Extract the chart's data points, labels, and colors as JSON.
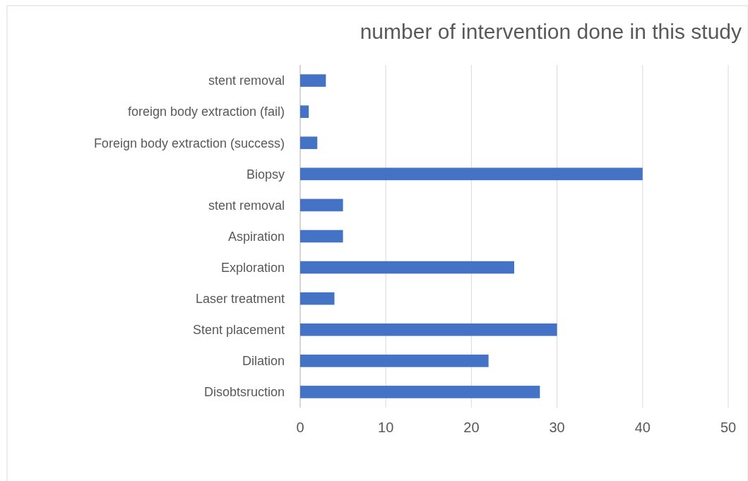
{
  "chart_data": {
    "type": "bar",
    "orientation": "horizontal",
    "title": "number of intervention done in this study",
    "categories": [
      "stent removal",
      "foreign body extraction (fail)",
      "Foreign body extraction (success)",
      "Biopsy",
      "stent removal",
      "Aspiration",
      "Exploration",
      "Laser treatment",
      "Stent placement",
      "Dilation",
      "Disobtsruction"
    ],
    "values": [
      3,
      1,
      2,
      40,
      5,
      5,
      25,
      4,
      30,
      22,
      28
    ],
    "color": "#4472c4",
    "xlim": [
      0,
      50
    ],
    "xticks": [
      0,
      10,
      20,
      30,
      40,
      50
    ],
    "grid": "x"
  }
}
